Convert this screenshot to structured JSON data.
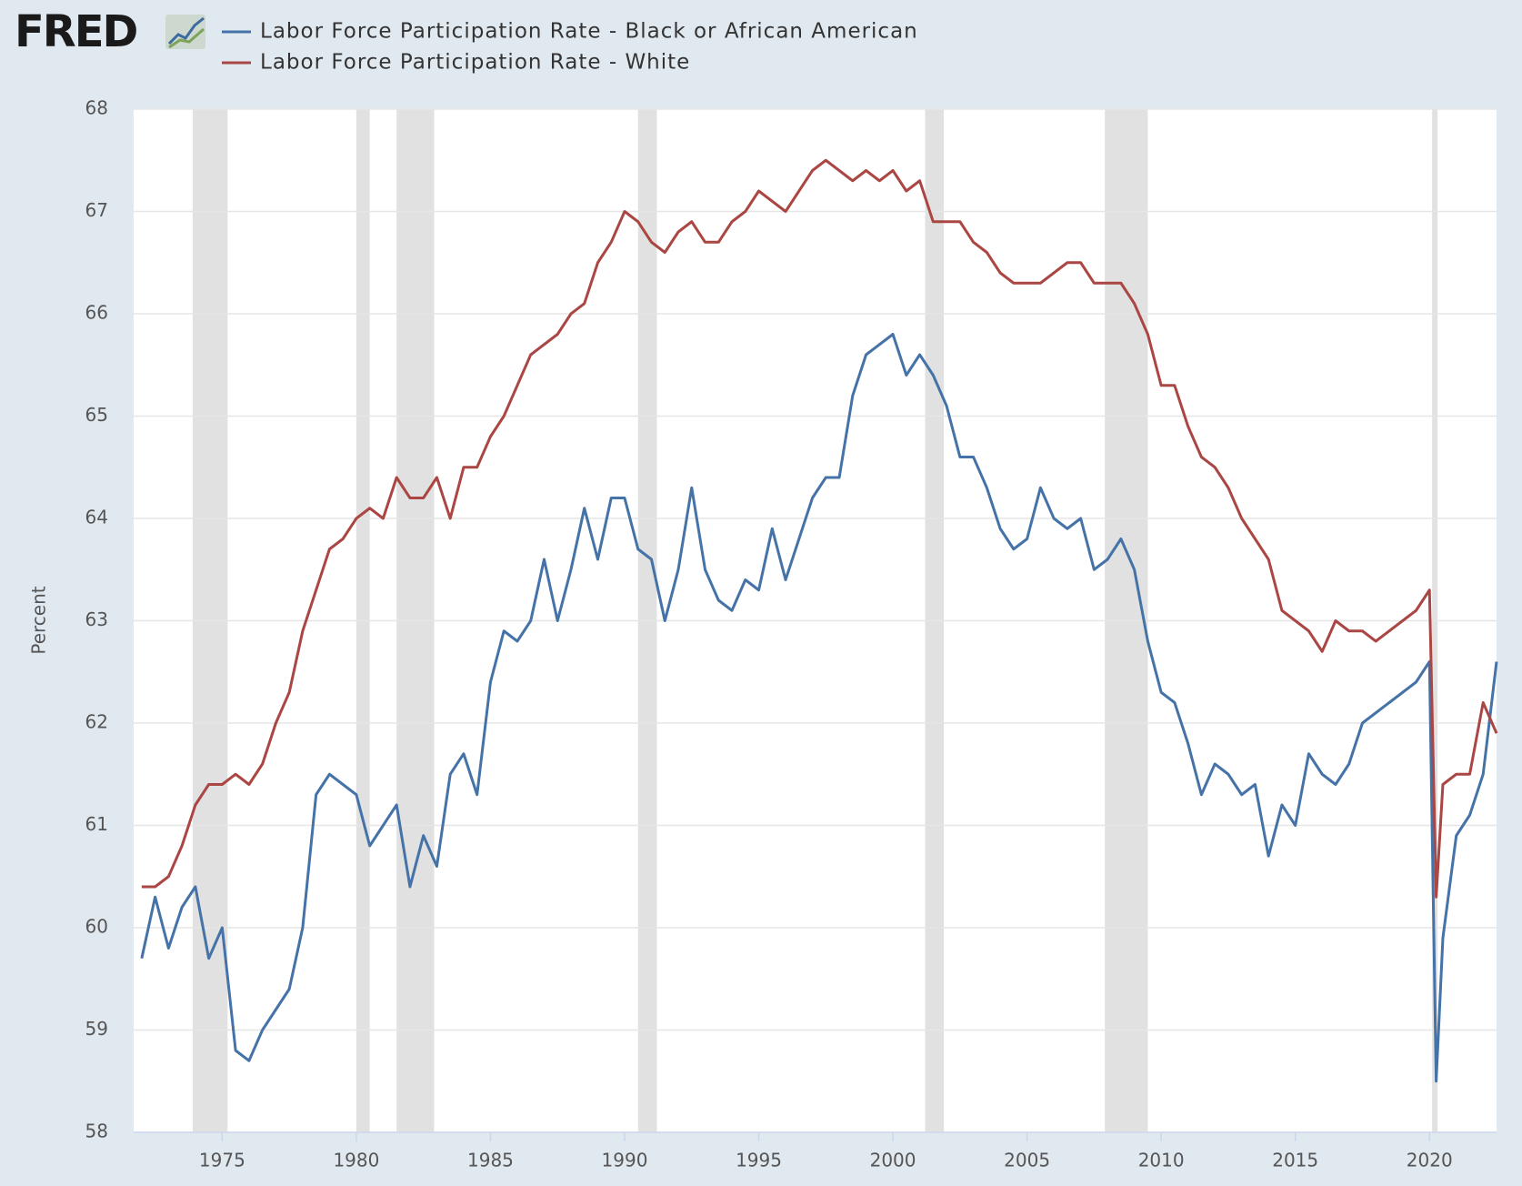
{
  "logo": "FRED",
  "chart_data": {
    "type": "line",
    "y_label": "Percent",
    "x": [
      1972,
      1972.5,
      1973,
      1973.5,
      1974,
      1974.5,
      1975,
      1975.5,
      1976,
      1976.5,
      1977,
      1977.5,
      1978,
      1978.5,
      1979,
      1979.5,
      1980,
      1980.5,
      1981,
      1981.5,
      1982,
      1982.5,
      1983,
      1983.5,
      1984,
      1984.5,
      1985,
      1985.5,
      1986,
      1986.5,
      1987,
      1987.5,
      1988,
      1988.5,
      1989,
      1989.5,
      1990,
      1990.5,
      1991,
      1991.5,
      1992,
      1992.5,
      1993,
      1993.5,
      1994,
      1994.5,
      1995,
      1995.5,
      1996,
      1996.5,
      1997,
      1997.5,
      1998,
      1998.5,
      1999,
      1999.5,
      2000,
      2000.5,
      2001,
      2001.5,
      2002,
      2002.5,
      2003,
      2003.5,
      2004,
      2004.5,
      2005,
      2005.5,
      2006,
      2006.5,
      2007,
      2007.5,
      2008,
      2008.5,
      2009,
      2009.5,
      2010,
      2010.5,
      2011,
      2011.5,
      2012,
      2012.5,
      2013,
      2013.5,
      2014,
      2014.5,
      2015,
      2015.5,
      2016,
      2016.5,
      2017,
      2017.5,
      2018,
      2018.5,
      2019,
      2019.5,
      2020,
      2020.25,
      2020.5,
      2021,
      2021.5,
      2022,
      2022.5
    ],
    "series": [
      {
        "name": "Labor Force Participation Rate - Black or African American",
        "color": "#4572a7",
        "values": [
          59.7,
          60.3,
          59.8,
          60.2,
          60.4,
          59.7,
          60.0,
          58.8,
          58.7,
          59.0,
          59.2,
          59.4,
          60.0,
          61.3,
          61.5,
          61.4,
          61.3,
          60.8,
          61.0,
          61.2,
          60.4,
          60.9,
          60.6,
          61.5,
          61.7,
          61.3,
          62.4,
          62.9,
          62.8,
          63.0,
          63.6,
          63.0,
          63.5,
          64.1,
          63.6,
          64.2,
          64.2,
          63.7,
          63.6,
          63.0,
          63.5,
          64.3,
          63.5,
          63.2,
          63.1,
          63.4,
          63.3,
          63.9,
          63.4,
          63.8,
          64.2,
          64.4,
          64.4,
          65.2,
          65.6,
          65.7,
          65.8,
          65.4,
          65.6,
          65.4,
          65.1,
          64.6,
          64.6,
          64.3,
          63.9,
          63.7,
          63.8,
          64.3,
          64.0,
          63.9,
          64.0,
          63.5,
          63.6,
          63.8,
          63.5,
          62.8,
          62.3,
          62.2,
          61.8,
          61.3,
          61.6,
          61.5,
          61.3,
          61.4,
          60.7,
          61.2,
          61.0,
          61.7,
          61.5,
          61.4,
          61.6,
          62.0,
          62.1,
          62.2,
          62.3,
          62.4,
          62.6,
          58.5,
          59.9,
          60.9,
          61.1,
          61.5,
          62.6
        ]
      },
      {
        "name": "Labor Force Participation Rate - White",
        "color": "#aa4643",
        "values": [
          60.4,
          60.4,
          60.5,
          60.8,
          61.2,
          61.4,
          61.4,
          61.5,
          61.4,
          61.6,
          62.0,
          62.3,
          62.9,
          63.3,
          63.7,
          63.8,
          64.0,
          64.1,
          64.0,
          64.4,
          64.2,
          64.2,
          64.4,
          64.0,
          64.5,
          64.5,
          64.8,
          65.0,
          65.3,
          65.6,
          65.7,
          65.8,
          66.0,
          66.1,
          66.5,
          66.7,
          67.0,
          66.9,
          66.7,
          66.6,
          66.8,
          66.9,
          66.7,
          66.7,
          66.9,
          67.0,
          67.2,
          67.1,
          67.0,
          67.2,
          67.4,
          67.5,
          67.4,
          67.3,
          67.4,
          67.3,
          67.4,
          67.2,
          67.3,
          66.9,
          66.9,
          66.9,
          66.7,
          66.6,
          66.4,
          66.3,
          66.3,
          66.3,
          66.4,
          66.5,
          66.5,
          66.3,
          66.3,
          66.3,
          66.1,
          65.8,
          65.3,
          65.3,
          64.9,
          64.6,
          64.5,
          64.3,
          64.0,
          63.8,
          63.6,
          63.1,
          63.0,
          62.9,
          62.7,
          63.0,
          62.9,
          62.9,
          62.8,
          62.9,
          63.0,
          63.1,
          63.3,
          60.3,
          61.4,
          61.5,
          61.5,
          62.2,
          61.9
        ]
      }
    ],
    "recessions": [
      [
        1973.9,
        1975.2
      ],
      [
        1980.0,
        1980.5
      ],
      [
        1981.5,
        1982.9
      ],
      [
        1990.5,
        1991.2
      ],
      [
        2001.2,
        2001.9
      ],
      [
        2007.9,
        2009.5
      ],
      [
        2020.1,
        2020.3
      ]
    ],
    "xlim": [
      1971.7,
      2022.5
    ],
    "xticks": [
      1975,
      1980,
      1985,
      1990,
      1995,
      2000,
      2005,
      2010,
      2015,
      2020
    ],
    "ylim": [
      58,
      68
    ],
    "yticks": [
      58,
      59,
      60,
      61,
      62,
      63,
      64,
      65,
      66,
      67,
      68
    ],
    "grid": true,
    "legend": "top"
  }
}
